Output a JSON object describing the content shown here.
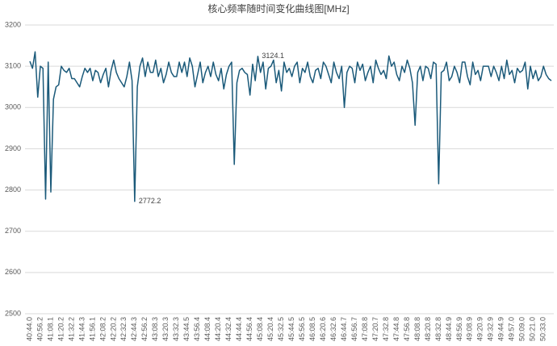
{
  "chart_data": {
    "type": "line",
    "title": "核心频率随时间变化曲线图[MHz]",
    "color": "#1b5a7a",
    "grid": true,
    "ylim": [
      2500,
      3200
    ],
    "yticks": [
      2500,
      2600,
      2700,
      2800,
      2900,
      3000,
      3100,
      3200
    ],
    "categories": [
      "40:44.0",
      null,
      null,
      null,
      "40:56.2",
      null,
      null,
      null,
      "41:08.1",
      null,
      null,
      null,
      "41:20.2",
      null,
      null,
      null,
      "41:32.2",
      null,
      null,
      null,
      "41:44.3",
      null,
      null,
      null,
      "41:56.1",
      null,
      null,
      null,
      "42:08.2",
      null,
      null,
      null,
      "42:20.2",
      null,
      null,
      null,
      "42:32.3",
      null,
      null,
      null,
      "42:44.3",
      null,
      null,
      null,
      "42:56.2",
      null,
      null,
      null,
      "43:08.3",
      null,
      null,
      null,
      "43:20.3",
      null,
      null,
      null,
      "43:32.3",
      null,
      null,
      null,
      "43:44.5",
      null,
      null,
      null,
      "43:56.4",
      null,
      null,
      null,
      "44:08.4",
      null,
      null,
      null,
      "44:20.4",
      null,
      null,
      null,
      "44:32.4",
      null,
      null,
      null,
      "44:44.4",
      null,
      null,
      null,
      "44:56.4",
      null,
      null,
      null,
      "45:08.4",
      null,
      null,
      null,
      "45:20.4",
      null,
      null,
      null,
      "45:32.5",
      null,
      null,
      null,
      "45:44.5",
      null,
      null,
      null,
      "45:56.5",
      null,
      null,
      null,
      "46:08.5",
      null,
      null,
      null,
      "46:20.6",
      null,
      null,
      null,
      "46:32.6",
      null,
      null,
      null,
      "46:44.7",
      null,
      null,
      null,
      "46:56.7",
      null,
      null,
      null,
      "47:08.8",
      null,
      null,
      null,
      "47:20.7",
      null,
      null,
      null,
      "47:32.8",
      null,
      null,
      null,
      "47:44.8",
      null,
      null,
      null,
      "47:56.8",
      null,
      null,
      null,
      "48:08.8",
      null,
      null,
      null,
      "48:20.8",
      null,
      null,
      null,
      "48:32.8",
      null,
      null,
      null,
      "48:44.9",
      null,
      null,
      null,
      "48:56.9",
      null,
      null,
      null,
      "49:08.9",
      null,
      null,
      null,
      "49:20.9",
      null,
      null,
      null,
      "49:32.9",
      null,
      null,
      null,
      "49:44.9",
      null,
      null,
      null,
      "49:57.0",
      null,
      null,
      null,
      "50:09.0",
      null,
      null,
      null,
      "50:21.0",
      null,
      null,
      null,
      "50:33.0",
      null,
      null,
      null
    ],
    "values": [
      3112,
      3095,
      3135,
      3025,
      3100,
      3095,
      2778,
      3110,
      2795,
      3020,
      3050,
      3055,
      3100,
      3090,
      3085,
      3095,
      3070,
      3070,
      3060,
      3050,
      3075,
      3095,
      3085,
      3095,
      3065,
      3090,
      3085,
      3060,
      3080,
      3095,
      3050,
      3090,
      3115,
      3085,
      3070,
      3060,
      3050,
      3075,
      3110,
      3065,
      2772.2,
      3050,
      3100,
      3120,
      3075,
      3110,
      3085,
      3085,
      3115,
      3075,
      3095,
      3060,
      3080,
      3110,
      3085,
      3075,
      3075,
      3110,
      3085,
      3110,
      3075,
      3120,
      3100,
      3050,
      3080,
      3110,
      3060,
      3085,
      3100,
      3075,
      3110,
      3080,
      3065,
      3095,
      3045,
      3080,
      3100,
      3110,
      2862,
      3060,
      3090,
      3095,
      3085,
      3080,
      3030,
      3105,
      3065,
      3124.1,
      3085,
      3110,
      3045,
      3095,
      3100,
      3115,
      3060,
      3090,
      3040,
      3110,
      3085,
      3095,
      3075,
      3100,
      3110,
      3060,
      3095,
      3085,
      3110,
      3075,
      3060,
      3090,
      3095,
      3070,
      3110,
      3100,
      3080,
      3060,
      3110,
      3085,
      3070,
      3100,
      3000,
      3085,
      3100,
      3095,
      3060,
      3110,
      3090,
      3105,
      3065,
      3085,
      3100,
      3060,
      3115,
      3095,
      3080,
      3090,
      3070,
      3125,
      3100,
      3110,
      3080,
      3065,
      3100,
      3085,
      3115,
      3095,
      3060,
      2957,
      3085,
      3100,
      3065,
      3100,
      3095,
      3070,
      3110,
      3105,
      2815,
      3085,
      3090,
      3110,
      3065,
      3075,
      3100,
      3085,
      3060,
      3110,
      3110,
      3075,
      3055,
      3110,
      3080,
      3090,
      3065,
      3100,
      3100,
      3100,
      3075,
      3100,
      3085,
      3065,
      3100,
      3070,
      3115,
      3080,
      3090,
      3060,
      3095,
      3085,
      3090,
      3110,
      3045,
      3100,
      3070,
      3090,
      3065,
      3075,
      3100,
      3080,
      3070,
      3065
    ],
    "value_labels": [
      null,
      null,
      null,
      null,
      null,
      null,
      null,
      null,
      null,
      null,
      null,
      null,
      null,
      null,
      null,
      null,
      null,
      null,
      null,
      null,
      null,
      null,
      null,
      null,
      null,
      null,
      null,
      null,
      null,
      null,
      null,
      null,
      null,
      null,
      null,
      null,
      null,
      null,
      null,
      null,
      "2772.2",
      null,
      null,
      null,
      null,
      null,
      null,
      null,
      null,
      null,
      null,
      null,
      null,
      null,
      null,
      null,
      null,
      null,
      null,
      null,
      null,
      null,
      null,
      null,
      null,
      null,
      null,
      null,
      null,
      null,
      null,
      null,
      null,
      null,
      null,
      null,
      null,
      null,
      null,
      null,
      null,
      null,
      null,
      null,
      null,
      null,
      null,
      "3124.1",
      null,
      null,
      null,
      null,
      null,
      null,
      null,
      null,
      null,
      null,
      null,
      null,
      null,
      null,
      null,
      null,
      null,
      null,
      null,
      null,
      null,
      null,
      null,
      null,
      null,
      null,
      null,
      null,
      null,
      null,
      null,
      null,
      null,
      null,
      null,
      null,
      null,
      null,
      null,
      null,
      null,
      null,
      null,
      null,
      null,
      null,
      null,
      null,
      null,
      null,
      null,
      null,
      null,
      null,
      null,
      null,
      null,
      null,
      null,
      null,
      null,
      null,
      null,
      null,
      null,
      null,
      null,
      null,
      null,
      null,
      null,
      null,
      null,
      null,
      null,
      null,
      null,
      null,
      null,
      null,
      null,
      null,
      null,
      null,
      null,
      null,
      null,
      null,
      null,
      null,
      null,
      null,
      null,
      null,
      null,
      null,
      null,
      null,
      null,
      null,
      null,
      null,
      null,
      null,
      null,
      null,
      null,
      null,
      null,
      null,
      null,
      null
    ]
  }
}
